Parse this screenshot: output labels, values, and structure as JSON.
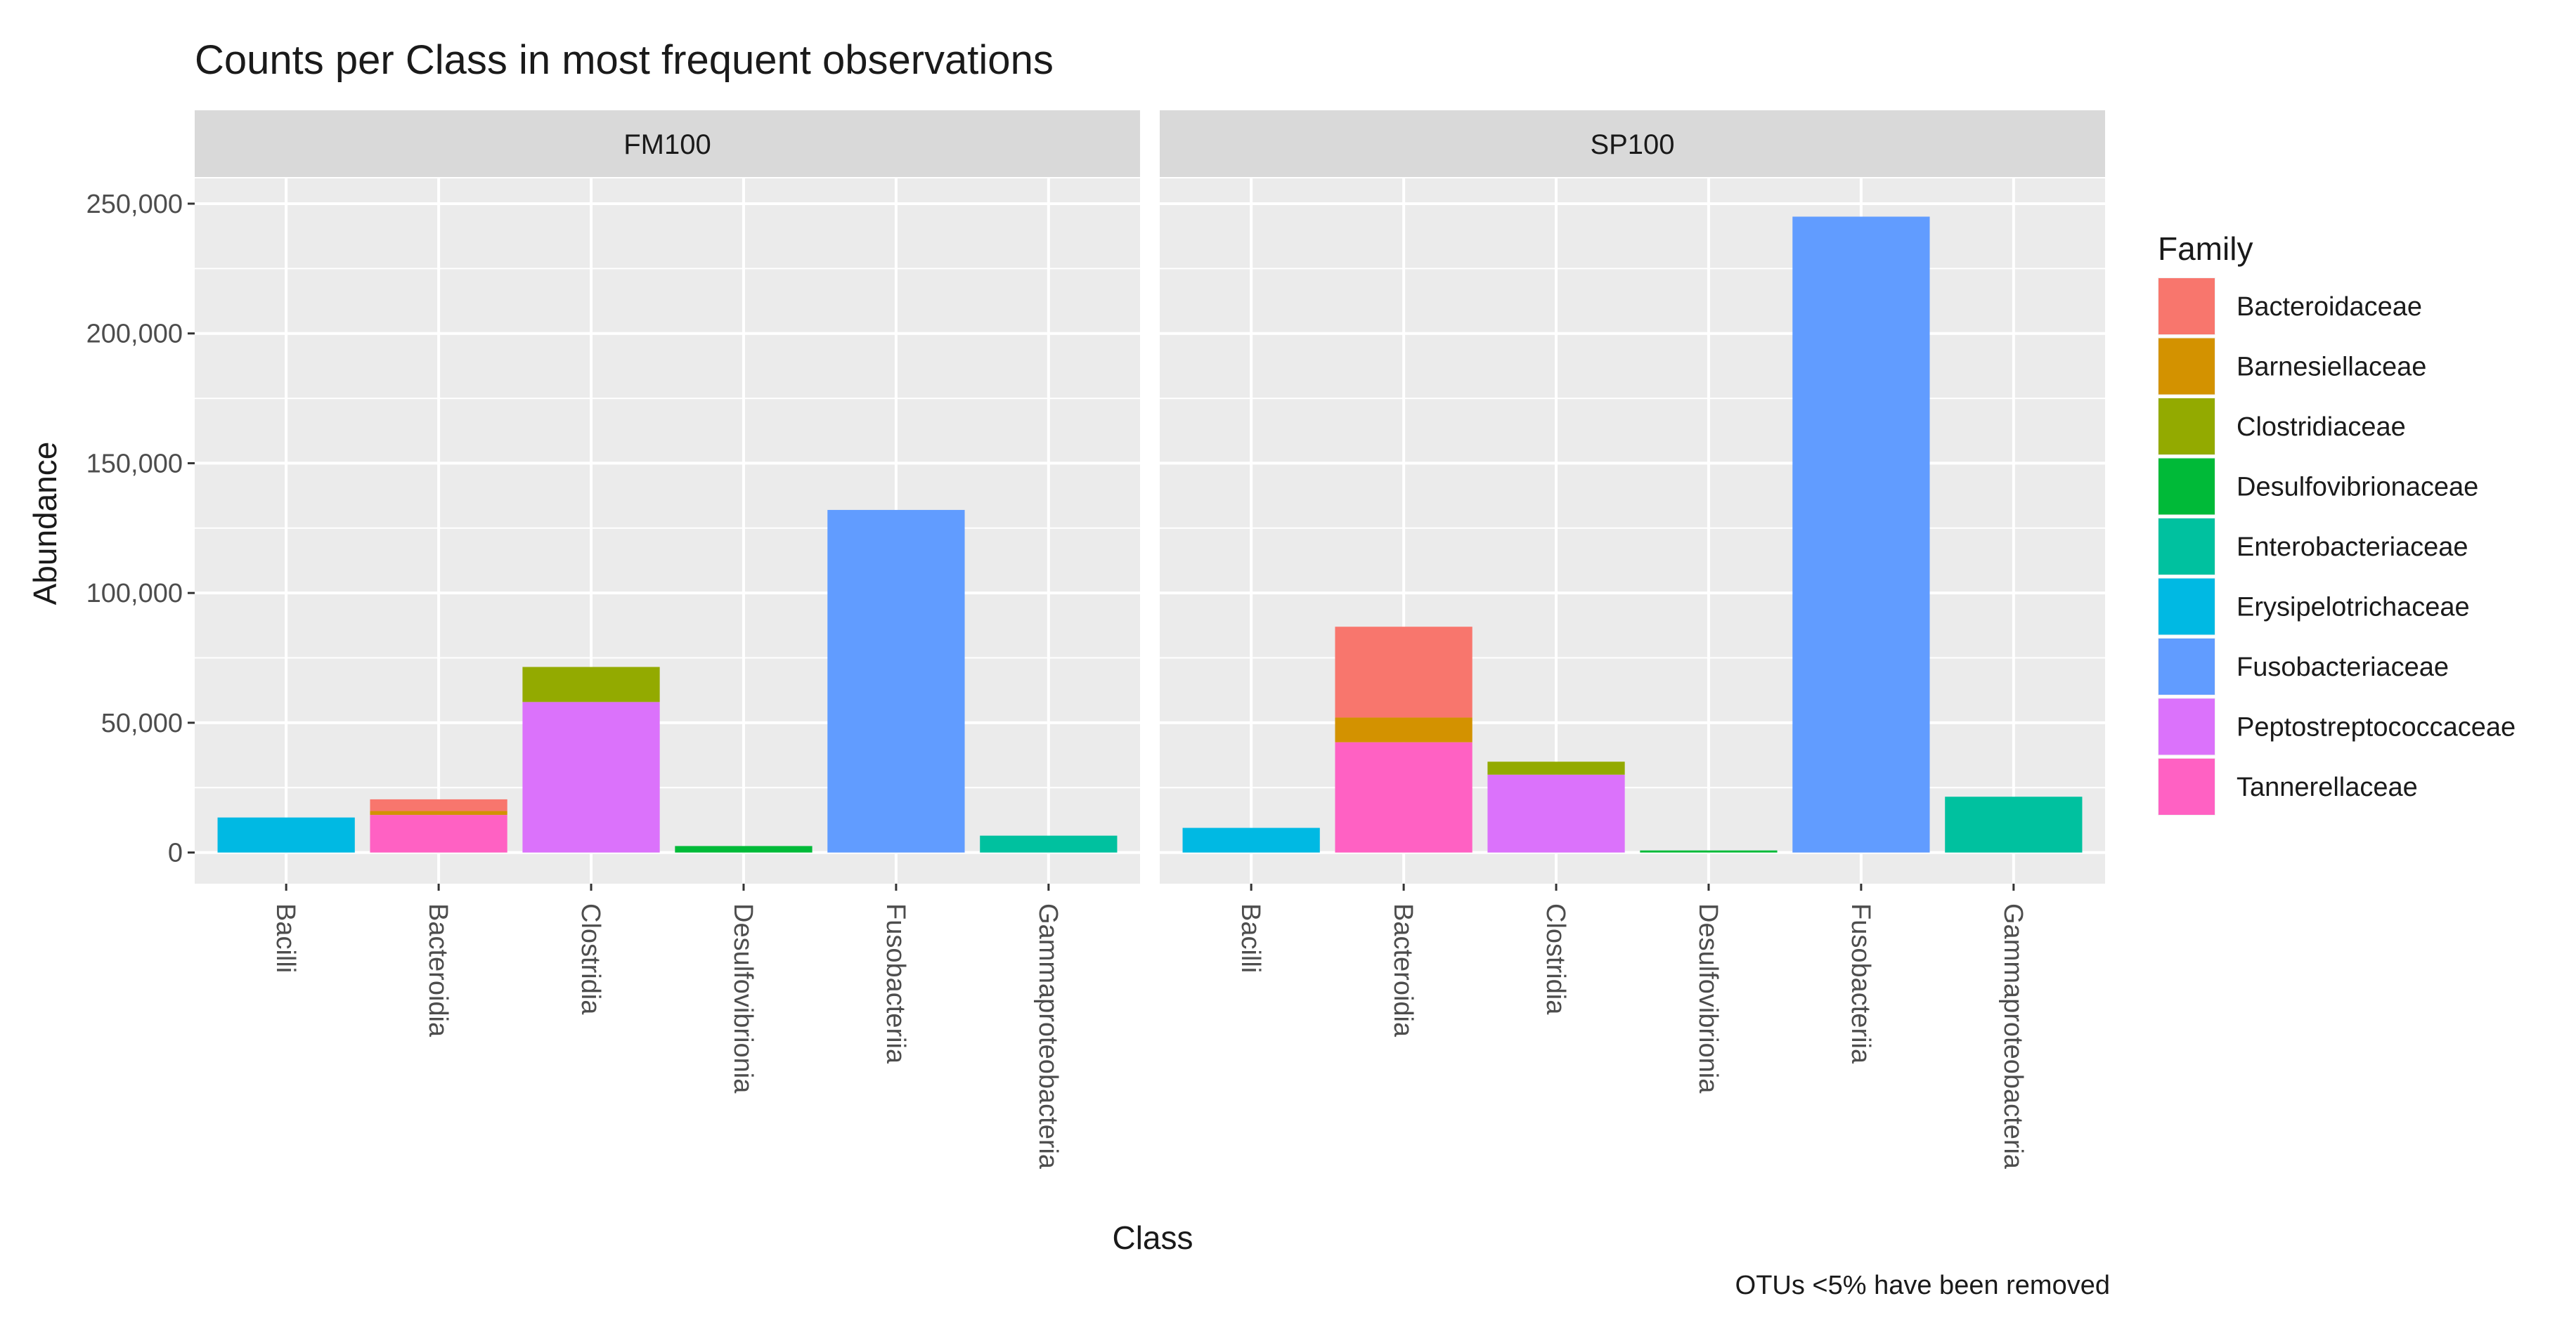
{
  "chart_data": {
    "type": "bar",
    "stacked": true,
    "title": "Counts per Class in most frequent observations",
    "xlabel": "Class",
    "ylabel": "Abundance",
    "ylim": [
      -12000,
      260000
    ],
    "y_ticks": [
      0,
      50000,
      100000,
      150000,
      200000,
      250000
    ],
    "y_tick_labels": [
      "0",
      "50,000",
      "100,000",
      "150,000",
      "200,000",
      "250,000"
    ],
    "categories": [
      "Bacilli",
      "Bacteroidia",
      "Clostridia",
      "Desulfovibrionia",
      "Fusobacteriia",
      "Gammaproteobacteria"
    ],
    "legend": {
      "title": "Family",
      "position": "right",
      "entries": [
        {
          "name": "Bacteroidaceae",
          "color": "#F8766D"
        },
        {
          "name": "Barnesiellaceae",
          "color": "#D39200"
        },
        {
          "name": "Clostridiaceae",
          "color": "#93AA00"
        },
        {
          "name": "Desulfovibrionaceae",
          "color": "#00BA38"
        },
        {
          "name": "Enterobacteriaceae",
          "color": "#00C19F"
        },
        {
          "name": "Erysipelotrichaceae",
          "color": "#00B9E3"
        },
        {
          "name": "Fusobacteriaceae",
          "color": "#619CFF"
        },
        {
          "name": "Peptostreptococcaceae",
          "color": "#DB72FB"
        },
        {
          "name": "Tannerellaceae",
          "color": "#FF61C3"
        }
      ]
    },
    "facets": [
      {
        "name": "FM100",
        "bars": [
          {
            "class": "Bacilli",
            "segments": [
              {
                "family": "Erysipelotrichaceae",
                "value": 13500
              }
            ]
          },
          {
            "class": "Bacteroidia",
            "segments": [
              {
                "family": "Tannerellaceae",
                "value": 14500
              },
              {
                "family": "Barnesiellaceae",
                "value": 1500
              },
              {
                "family": "Bacteroidaceae",
                "value": 4500
              }
            ]
          },
          {
            "class": "Clostridia",
            "segments": [
              {
                "family": "Peptostreptococcaceae",
                "value": 58000
              },
              {
                "family": "Clostridiaceae",
                "value": 13500
              }
            ]
          },
          {
            "class": "Desulfovibrionia",
            "segments": [
              {
                "family": "Desulfovibrionaceae",
                "value": 2500
              }
            ]
          },
          {
            "class": "Fusobacteriia",
            "segments": [
              {
                "family": "Fusobacteriaceae",
                "value": 132000
              }
            ]
          },
          {
            "class": "Gammaproteobacteria",
            "segments": [
              {
                "family": "Enterobacteriaceae",
                "value": 6500
              }
            ]
          }
        ]
      },
      {
        "name": "SP100",
        "bars": [
          {
            "class": "Bacilli",
            "segments": [
              {
                "family": "Erysipelotrichaceae",
                "value": 9500
              }
            ]
          },
          {
            "class": "Bacteroidia",
            "segments": [
              {
                "family": "Tannerellaceae",
                "value": 42500
              },
              {
                "family": "Barnesiellaceae",
                "value": 9500
              },
              {
                "family": "Bacteroidaceae",
                "value": 35000
              }
            ]
          },
          {
            "class": "Clostridia",
            "segments": [
              {
                "family": "Peptostreptococcaceae",
                "value": 30000
              },
              {
                "family": "Clostridiaceae",
                "value": 5000
              }
            ]
          },
          {
            "class": "Desulfovibrionia",
            "segments": [
              {
                "family": "Desulfovibrionaceae",
                "value": 800
              }
            ]
          },
          {
            "class": "Fusobacteriia",
            "segments": [
              {
                "family": "Fusobacteriaceae",
                "value": 245000
              }
            ]
          },
          {
            "class": "Gammaproteobacteria",
            "segments": [
              {
                "family": "Enterobacteriaceae",
                "value": 21500
              }
            ]
          }
        ]
      }
    ],
    "caption": "OTUs <5% have been removed"
  }
}
